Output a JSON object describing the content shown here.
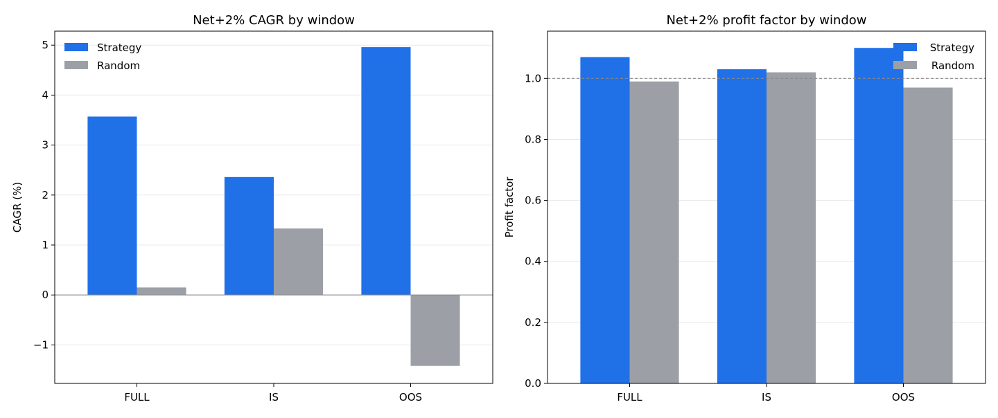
{
  "chart_data": [
    {
      "type": "bar",
      "title": "Net+2% CAGR by window",
      "xlabel": "",
      "ylabel": "CAGR (%)",
      "categories": [
        "FULL",
        "IS",
        "OOS"
      ],
      "series": [
        {
          "name": "Strategy",
          "color": "#2070e8",
          "values": [
            3.57,
            2.36,
            4.96
          ]
        },
        {
          "name": "Random",
          "color": "#9ca0a6",
          "values": [
            0.15,
            1.33,
            -1.42
          ]
        }
      ],
      "ylim": [
        -1.77,
        5.28
      ],
      "yticks": [
        -1,
        0,
        1,
        2,
        3,
        4,
        5
      ],
      "ytick_labels": [
        "−1",
        "0",
        "1",
        "2",
        "3",
        "4",
        "5"
      ],
      "grid": true,
      "reference_line": {
        "y": 0,
        "style": "solid"
      },
      "legend_position": "top-left"
    },
    {
      "type": "bar",
      "title": "Net+2% profit factor by window",
      "xlabel": "",
      "ylabel": "Profit factor",
      "categories": [
        "FULL",
        "IS",
        "OOS"
      ],
      "series": [
        {
          "name": "Strategy",
          "color": "#2070e8",
          "values": [
            1.07,
            1.03,
            1.1
          ]
        },
        {
          "name": "Random",
          "color": "#9ca0a6",
          "values": [
            0.99,
            1.02,
            0.97
          ]
        }
      ],
      "ylim": [
        0,
        1.155
      ],
      "yticks": [
        0,
        0.2,
        0.4,
        0.6,
        0.8,
        1.0
      ],
      "ytick_labels": [
        "0.0",
        "0.2",
        "0.4",
        "0.6",
        "0.8",
        "1.0"
      ],
      "grid": true,
      "reference_line": {
        "y": 1.0,
        "style": "dashed"
      },
      "legend_position": "top-right"
    }
  ]
}
